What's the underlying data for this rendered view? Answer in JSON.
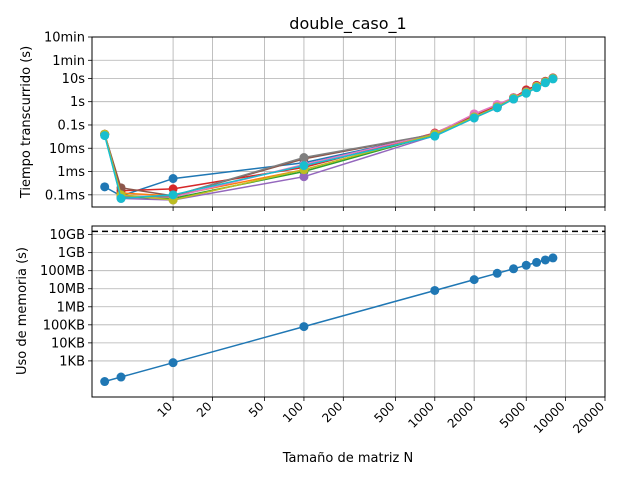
{
  "figure": {
    "title": "double_caso_1",
    "xlabel": "Tamaño de matriz N"
  },
  "chart_data": [
    {
      "type": "line",
      "title": "double_caso_1",
      "xlabel": "",
      "ylabel": "Tiempo transcurrido (s)",
      "x_scale": "log",
      "y_scale": "log",
      "xlim": [
        2.4,
        20000
      ],
      "ylim": [
        3e-05,
        600
      ],
      "grid": true,
      "yticks": [
        {
          "value": 0.0001,
          "label": "0.1ms"
        },
        {
          "value": 0.001,
          "label": "1ms"
        },
        {
          "value": 0.01,
          "label": "10ms"
        },
        {
          "value": 0.1,
          "label": "0.1s"
        },
        {
          "value": 1,
          "label": "1s"
        },
        {
          "value": 10,
          "label": "10s"
        },
        {
          "value": 60,
          "label": "1min"
        },
        {
          "value": 600,
          "label": "10min"
        }
      ],
      "series": [
        {
          "color": "#1f77b4",
          "x": [
            3,
            4,
            10,
            100,
            1000,
            2000,
            3000,
            4000,
            5000,
            6000,
            7000,
            8000
          ],
          "y": [
            0.00022,
            9e-05,
            0.0005,
            0.0024,
            0.04,
            0.22,
            0.6,
            1.4,
            2.5,
            4.5,
            7,
            10
          ]
        },
        {
          "color": "#ff7f0e",
          "x": [
            3,
            4,
            10,
            100,
            1000,
            2000,
            3000,
            4000,
            5000,
            6000,
            7000,
            8000
          ],
          "y": [
            0.04,
            0.00012,
            9e-05,
            0.0012,
            0.04,
            0.24,
            0.62,
            1.45,
            2.6,
            4.6,
            7.2,
            10
          ]
        },
        {
          "color": "#2ca02c",
          "x": [
            3,
            4,
            10,
            100,
            1000,
            2000,
            3000,
            4000,
            5000,
            6000,
            7000,
            8000
          ],
          "y": [
            0.04,
            8e-05,
            7e-05,
            0.001,
            0.038,
            0.22,
            0.6,
            1.35,
            2.5,
            4.4,
            7,
            10
          ]
        },
        {
          "color": "#d62728",
          "x": [
            3,
            4,
            10,
            100,
            1000,
            2000,
            3000,
            4000,
            5000,
            6000,
            7000,
            8000
          ],
          "y": [
            0.04,
            0.00015,
            0.00018,
            0.0015,
            0.045,
            0.25,
            0.65,
            1.5,
            3.2,
            5,
            7.5,
            10.5
          ]
        },
        {
          "color": "#9467bd",
          "x": [
            3,
            4,
            10,
            100,
            1000,
            2000,
            3000,
            4000,
            5000,
            6000,
            7000,
            8000
          ],
          "y": [
            0.04,
            7e-05,
            6e-05,
            0.0006,
            0.035,
            0.2,
            0.55,
            1.3,
            2.4,
            4.3,
            6.8,
            9.8
          ]
        },
        {
          "color": "#8c564b",
          "x": [
            3,
            4,
            10,
            100,
            1000,
            2000,
            3000,
            4000,
            5000,
            6000,
            7000,
            8000
          ],
          "y": [
            0.04,
            0.0002,
            9e-05,
            0.0035,
            0.04,
            0.23,
            0.6,
            1.4,
            2.8,
            4.6,
            7.2,
            10.2
          ]
        },
        {
          "color": "#e377c2",
          "x": [
            3,
            4,
            10,
            100,
            1000,
            2000,
            3000,
            4000,
            5000,
            6000,
            7000,
            8000
          ],
          "y": [
            0.04,
            9e-05,
            8e-05,
            0.002,
            0.042,
            0.3,
            0.75,
            1.5,
            2.6,
            4.6,
            7.1,
            10
          ]
        },
        {
          "color": "#7f7f7f",
          "x": [
            3,
            4,
            10,
            100,
            1000,
            2000,
            3000,
            4000,
            5000,
            6000,
            7000,
            8000
          ],
          "y": [
            0.04,
            8e-05,
            9e-05,
            0.004,
            0.04,
            0.22,
            0.6,
            1.4,
            2.5,
            4.5,
            7,
            10
          ]
        },
        {
          "color": "#bcbd22",
          "x": [
            3,
            4,
            10,
            100,
            1000,
            2000,
            3000,
            4000,
            5000,
            6000,
            7000,
            8000
          ],
          "y": [
            0.04,
            0.0001,
            6e-05,
            0.0012,
            0.04,
            0.22,
            0.6,
            1.4,
            2.5,
            4.5,
            7,
            10
          ]
        },
        {
          "color": "#17becf",
          "x": [
            3,
            4,
            10,
            100,
            1000,
            2000,
            3000,
            4000,
            5000,
            6000,
            7000,
            8000
          ],
          "y": [
            0.035,
            7e-05,
            0.0001,
            0.0018,
            0.033,
            0.2,
            0.55,
            1.3,
            2.3,
            4,
            6.5,
            9.5
          ]
        }
      ]
    },
    {
      "type": "line",
      "xlabel": "Tamaño de matriz N",
      "ylabel": "Uso de memoria (s)",
      "x_scale": "log",
      "y_scale": "log",
      "xlim": [
        2.4,
        20000
      ],
      "ylim": [
        10,
        30000000000
      ],
      "grid": true,
      "xticks": [
        10,
        20,
        50,
        100,
        200,
        500,
        1000,
        2000,
        5000,
        10000,
        20000
      ],
      "xtick_labels": [
        "10",
        "20",
        "50",
        "100",
        "200",
        "500",
        "1000",
        "2000",
        "5000",
        "10000",
        "20000"
      ],
      "yticks": [
        {
          "value": 1000,
          "label": "1KB"
        },
        {
          "value": 10000,
          "label": "10KB"
        },
        {
          "value": 100000,
          "label": "100KB"
        },
        {
          "value": 1000000,
          "label": "1MB"
        },
        {
          "value": 10000000,
          "label": "10MB"
        },
        {
          "value": 100000000,
          "label": "100MB"
        },
        {
          "value": 1000000000,
          "label": "1GB"
        },
        {
          "value": 10000000000,
          "label": "10GB"
        }
      ],
      "reference_line": {
        "y": 15000000000,
        "style": "dashed",
        "color": "#000000"
      },
      "series": [
        {
          "color": "#1f77b4",
          "x": [
            3,
            4,
            10,
            100,
            1000,
            2000,
            3000,
            4000,
            5000,
            6000,
            7000,
            8000
          ],
          "y": [
            72,
            128,
            800,
            80000,
            8000000,
            32000000,
            72000000,
            128000000,
            200000000,
            288000000,
            392000000,
            512000000
          ]
        }
      ]
    }
  ]
}
